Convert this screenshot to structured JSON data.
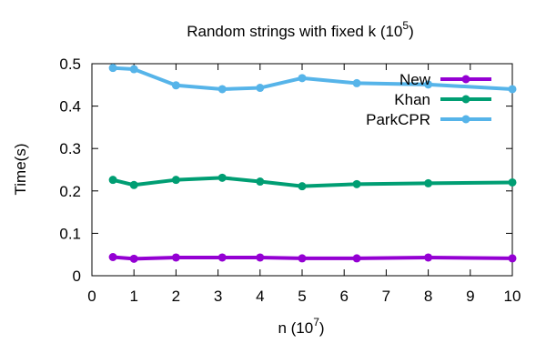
{
  "chart_data": {
    "type": "line",
    "title": "Random strings with fixed k (10",
    "title_exp": "5",
    "title_close": ")",
    "xlabel": "n (10",
    "xlabel_exp": "7",
    "xlabel_close": ")",
    "ylabel": "Time(s)",
    "xlim": [
      0,
      10
    ],
    "ylim": [
      0,
      0.5
    ],
    "x_ticks": [
      "0",
      "1",
      "2",
      "3",
      "4",
      "5",
      "6",
      "7",
      "8",
      "9",
      "10"
    ],
    "y_ticks": [
      "0",
      "0.1",
      "0.2",
      "0.3",
      "0.4",
      "0.5"
    ],
    "x_tick_values": [
      0,
      1,
      2,
      3,
      4,
      5,
      6,
      7,
      8,
      9,
      10
    ],
    "y_tick_values": [
      0,
      0.1,
      0.2,
      0.3,
      0.4,
      0.5
    ],
    "grid": false,
    "legend_position": "top-right",
    "x": [
      0.5,
      1,
      2,
      3.1,
      4,
      5,
      6.3,
      8,
      10
    ],
    "series": [
      {
        "name": "New",
        "color": "#9400d3",
        "values": [
          0.044,
          0.04,
          0.043,
          0.043,
          0.043,
          0.041,
          0.041,
          0.043,
          0.041
        ]
      },
      {
        "name": "Khan",
        "color": "#009e73",
        "values": [
          0.226,
          0.214,
          0.226,
          0.231,
          0.222,
          0.211,
          0.216,
          0.218,
          0.22
        ]
      },
      {
        "name": "ParkCPR",
        "color": "#56b4e9",
        "values": [
          0.49,
          0.487,
          0.449,
          0.44,
          0.443,
          0.466,
          0.454,
          0.451,
          0.44
        ]
      }
    ]
  }
}
